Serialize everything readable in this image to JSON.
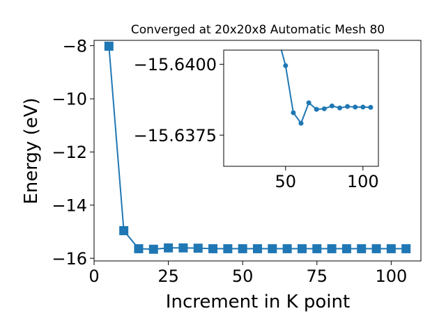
{
  "chart_data": [
    {
      "type": "line",
      "title": "Converged at 20x20x8 Automatic Mesh 80",
      "xlabel": "Increment in K point",
      "ylabel": "Energy (eV)",
      "xlim": [
        0,
        110
      ],
      "ylim": [
        -16.1,
        -7.8
      ],
      "xticks": [
        0,
        25,
        50,
        75,
        100
      ],
      "xtick_labels": [
        "0",
        "25",
        "50",
        "75",
        "100"
      ],
      "yticks": [
        -8,
        -10,
        -12,
        -14,
        -16
      ],
      "ytick_labels": [
        "−8",
        "−10",
        "−12",
        "−14",
        "−16"
      ],
      "marker": "square",
      "color": "#1f77b4",
      "grid": false,
      "x": [
        5,
        10,
        15,
        20,
        25,
        30,
        35,
        40,
        45,
        50,
        55,
        60,
        65,
        70,
        75,
        80,
        85,
        90,
        95,
        100,
        105
      ],
      "y": [
        -8.02,
        -14.96,
        -15.64,
        -15.66,
        -15.61,
        -15.61,
        -15.62,
        -15.64,
        -15.64,
        -15.64,
        -15.64,
        -15.64,
        -15.64,
        -15.64,
        -15.64,
        -15.64,
        -15.64,
        -15.64,
        -15.64,
        -15.64,
        -15.64
      ]
    },
    {
      "type": "line",
      "title": "",
      "xlabel": "",
      "ylabel": "",
      "xlim": [
        10,
        110
      ],
      "ylim": [
        -15.6364,
        -15.6405
      ],
      "xticks": [
        50,
        100
      ],
      "xtick_labels": [
        "50",
        "100"
      ],
      "yticks": [
        -15.64,
        -15.6375
      ],
      "ytick_labels": [
        "−15.6400",
        "−15.6375"
      ],
      "marker": "circle",
      "color": "#1f77b4",
      "grid": false,
      "x": [
        47,
        50,
        55,
        60,
        65,
        70,
        75,
        80,
        85,
        90,
        95,
        100,
        105
      ],
      "y": [
        -15.64056,
        -15.63995,
        -15.63829,
        -15.63792,
        -15.63864,
        -15.63841,
        -15.63843,
        -15.63853,
        -15.63846,
        -15.63851,
        -15.63849,
        -15.63849,
        -15.63848
      ]
    }
  ]
}
